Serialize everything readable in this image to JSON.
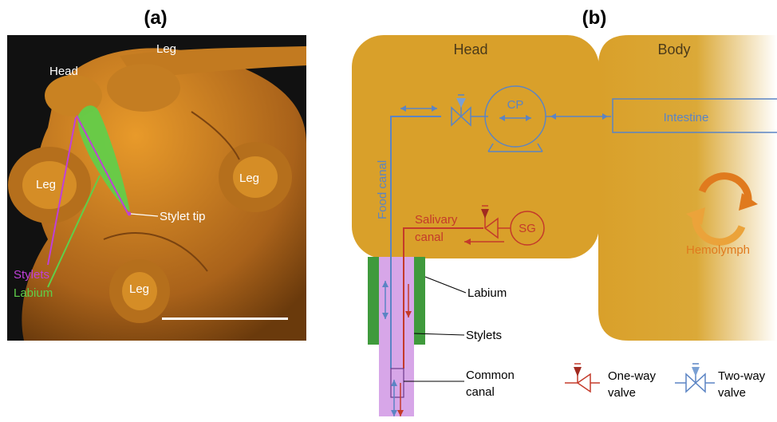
{
  "panel_a": {
    "title": "(a)",
    "labels": {
      "head": "Head",
      "leg_top": "Leg",
      "leg_left": "Leg",
      "leg_right": "Leg",
      "leg_bottom": "Leg",
      "stylet_tip": "Stylet tip",
      "stylets": "Stylets",
      "labium": "Labium"
    },
    "colors": {
      "background": "#111111",
      "tissue": "#d4861c",
      "labium": "#5fcf4a",
      "stylets": "#c040d8"
    }
  },
  "panel_b": {
    "title": "(b)",
    "head": "Head",
    "body": "Body",
    "cp": "CP",
    "intestine": "Intestine",
    "food_canal": "Food canal",
    "salivary": "Salivary",
    "canal": "canal",
    "sg": "SG",
    "hemolymph": "Hemolymph",
    "labium": "Labium",
    "stylets": "Stylets",
    "common": "Common",
    "common_canal": "canal",
    "legend": {
      "one_way_1": "One-way",
      "one_way_2": "valve",
      "two_way_1": "Two-way",
      "two_way_2": "valve"
    },
    "colors": {
      "head": "#d9a02a",
      "body": "#d9a02a",
      "food": "#5b84c4",
      "saliva": "#c43a2a",
      "labium": "#3f9a3c",
      "stylets": "#d7a6e8",
      "hemolymph": "#e07a1e"
    }
  }
}
